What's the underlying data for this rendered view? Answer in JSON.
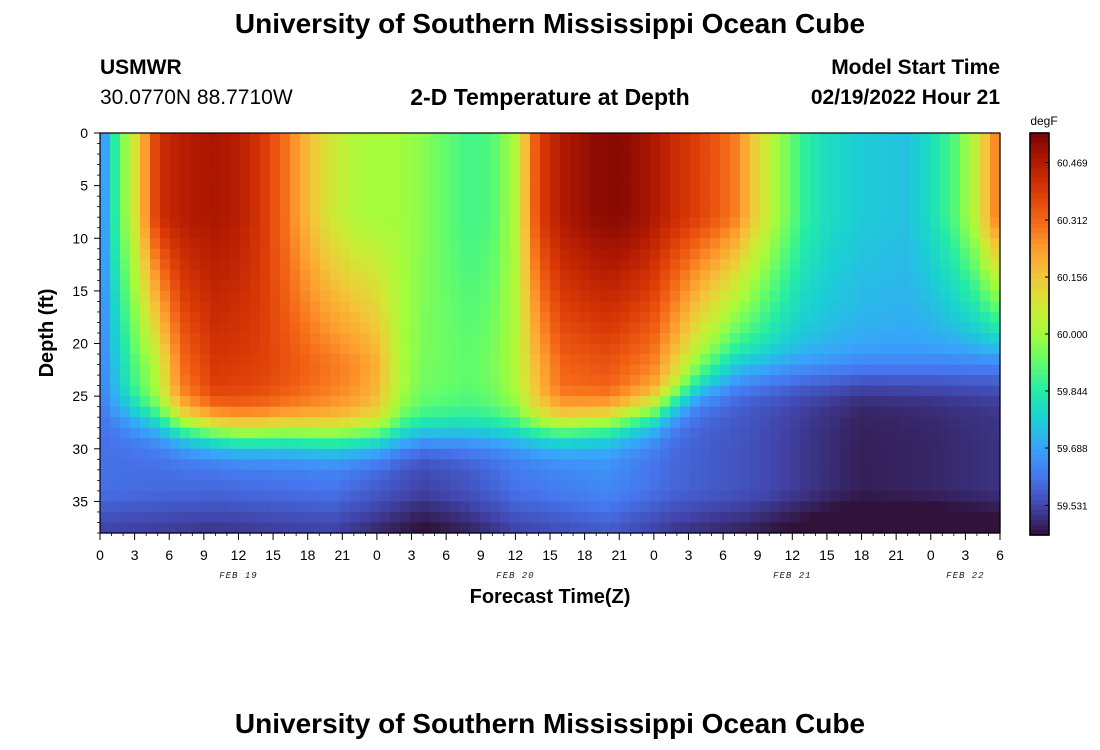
{
  "header": {
    "title": "University of Southern Mississippi Ocean Cube",
    "station": "USMWR",
    "coords": "30.0770N  88.7710W",
    "subtitle": "2-D Temperature at Depth",
    "model_label": "Model Start Time",
    "model_time": "02/19/2022 Hour 21"
  },
  "footer": {
    "title": "University of Southern Mississippi Ocean Cube"
  },
  "chart_data": {
    "type": "heatmap",
    "title": "2-D Temperature at Depth",
    "xlabel": "Forecast Time(Z)",
    "ylabel": "Depth (ft)",
    "x_tick_labels": [
      "0",
      "3",
      "6",
      "9",
      "12",
      "15",
      "18",
      "21",
      "0",
      "3",
      "6",
      "9",
      "12",
      "15",
      "18",
      "21",
      "0",
      "3",
      "6",
      "9",
      "12",
      "15",
      "18",
      "21",
      "0",
      "3",
      "6"
    ],
    "date_labels": [
      {
        "label": "FEB 19",
        "at_hour": 12
      },
      {
        "label": "FEB 20",
        "at_hour": 36
      },
      {
        "label": "FEB 21",
        "at_hour": 60
      },
      {
        "label": "FEB 22",
        "at_hour": 75
      }
    ],
    "x_range_hours": [
      0,
      78
    ],
    "y_ticks": [
      0,
      5,
      10,
      15,
      20,
      25,
      30,
      35
    ],
    "y_range_ft": [
      0,
      38
    ],
    "colorbar": {
      "unit": "degF",
      "ticks": [
        "60.469",
        "60.312",
        "60.156",
        "60.000",
        "59.844",
        "59.688",
        "59.531"
      ],
      "range": [
        59.45,
        60.55
      ],
      "colors": [
        "#30123b",
        "#4145ab",
        "#4675ed",
        "#39a2fc",
        "#1bcfd4",
        "#24eca6",
        "#61fc6c",
        "#a4fc3b",
        "#d1e834",
        "#f3c63a",
        "#fe9b2d",
        "#f36315",
        "#d93806",
        "#b11901",
        "#7a0403"
      ]
    },
    "grid": false
  }
}
